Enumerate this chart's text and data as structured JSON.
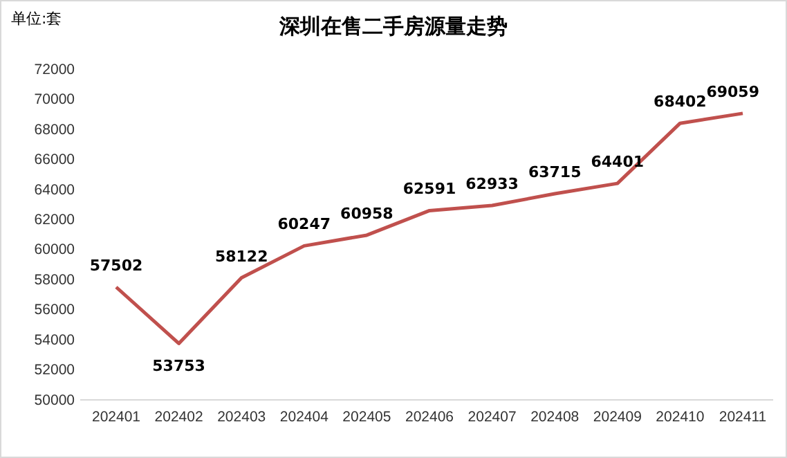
{
  "chart_data": {
    "type": "line",
    "title": "深圳在售二手房源量走势",
    "ylabel": "单位:套",
    "categories": [
      "202401",
      "202402",
      "202403",
      "202404",
      "202405",
      "202406",
      "202407",
      "202408",
      "202409",
      "202410",
      "202411"
    ],
    "series": [
      {
        "color": "#c0504d",
        "values": [
          57502,
          53753,
          58122,
          60247,
          60958,
          62591,
          62933,
          63715,
          64401,
          68402,
          69059
        ]
      }
    ],
    "ylim": [
      50000,
      72000
    ],
    "yticks": [
      50000,
      52000,
      54000,
      56000,
      58000,
      60000,
      62000,
      64000,
      66000,
      68000,
      70000,
      72000
    ],
    "data_labels": true,
    "grid": false,
    "marker": "none",
    "line_style": "solid"
  }
}
